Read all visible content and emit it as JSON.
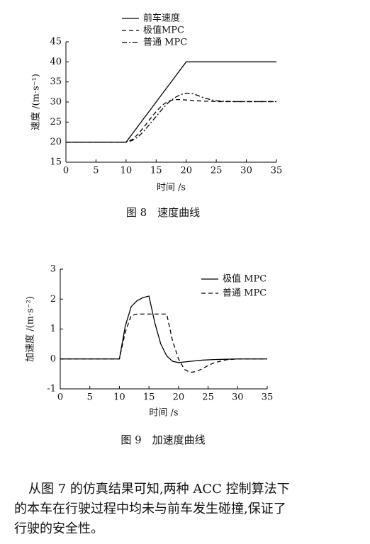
{
  "chart_data": [
    {
      "type": "line",
      "caption": "图 8　速度曲线",
      "xlabel": "时间 /s",
      "ylabel": "速度 /(m·s⁻¹)",
      "xlim": [
        0,
        35
      ],
      "xticks": [
        0,
        5,
        10,
        15,
        20,
        25,
        30,
        35
      ],
      "ylim": [
        15,
        45
      ],
      "yticks": [
        15,
        20,
        25,
        30,
        35,
        40,
        45
      ],
      "legend": "top",
      "x": [
        0,
        5,
        10,
        11,
        12,
        13,
        14,
        15,
        16,
        17,
        18,
        19,
        20,
        21,
        22,
        23,
        24,
        25,
        26,
        28,
        30,
        32,
        35
      ],
      "series": [
        {
          "name": "前车速度",
          "color": "#000000",
          "dash": "solid",
          "values": [
            20,
            20,
            20,
            22,
            24,
            26,
            28,
            30,
            32,
            34,
            36,
            38,
            40,
            40,
            40,
            40,
            40,
            40,
            40,
            40,
            40,
            40,
            40
          ]
        },
        {
          "name": "极值MPC",
          "color": "#000000",
          "dash": "dashed",
          "values": [
            20,
            20,
            20,
            20.6,
            22,
            23.8,
            25.8,
            27.6,
            29.2,
            30.2,
            30.6,
            30.6,
            30.5,
            30.4,
            30.3,
            30.2,
            30.2,
            30.1,
            30.1,
            30.1,
            30.1,
            30.1,
            30.1
          ]
        },
        {
          "name": "普通 MPC",
          "color": "#000000",
          "dash": "dashdot",
          "values": [
            20,
            20,
            20,
            20.4,
            21.3,
            22.8,
            24.6,
            26.4,
            28.2,
            29.8,
            31.0,
            31.8,
            32.2,
            32.1,
            31.6,
            31.0,
            30.6,
            30.3,
            30.2,
            30.1,
            30.1,
            30.1,
            30.1
          ]
        }
      ]
    },
    {
      "type": "line",
      "caption": "图 9　加速度曲线",
      "xlabel": "时间 /s",
      "ylabel": "加速度 /(m·s⁻²)",
      "xlim": [
        0,
        35
      ],
      "xticks": [
        0,
        5,
        10,
        15,
        20,
        25,
        30,
        35
      ],
      "ylim": [
        -1,
        3
      ],
      "yticks": [
        -1,
        0,
        1,
        2,
        3
      ],
      "legend": "upper right",
      "x": [
        0,
        5,
        10,
        11,
        12,
        13,
        14,
        15,
        16,
        17,
        18,
        19,
        20,
        21,
        22,
        23,
        24,
        25,
        26,
        28,
        30,
        35
      ],
      "series": [
        {
          "name": "极值 MPC",
          "color": "#000000",
          "dash": "solid",
          "values": [
            0,
            0,
            0,
            1.1,
            1.75,
            1.95,
            2.05,
            2.1,
            1.2,
            0.5,
            0.1,
            -0.08,
            -0.12,
            -0.1,
            -0.08,
            -0.06,
            -0.04,
            -0.03,
            -0.02,
            -0.01,
            0,
            0
          ]
        },
        {
          "name": "普通 MPC",
          "color": "#000000",
          "dash": "dashed",
          "values": [
            0,
            0,
            0,
            0.9,
            1.45,
            1.5,
            1.5,
            1.5,
            1.5,
            1.5,
            1.5,
            0.6,
            0,
            -0.35,
            -0.45,
            -0.42,
            -0.33,
            -0.22,
            -0.13,
            -0.03,
            0,
            0
          ]
        }
      ]
    }
  ],
  "paragraph": [
    "从图 7 的仿真结果可知,两种 ACC 控制算法下",
    "的本车在行驶过程中均未与前车发生碰撞,保证了",
    "行驶的安全性。"
  ]
}
